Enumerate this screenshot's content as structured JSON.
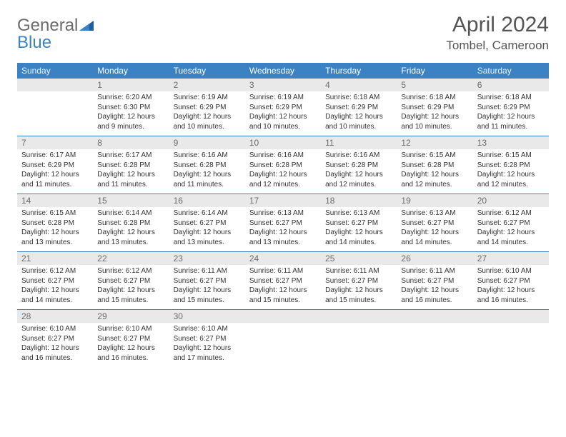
{
  "brand": {
    "word1": "General",
    "word2": "Blue"
  },
  "title": "April 2024",
  "location": "Tombel, Cameroon",
  "colors": {
    "header_bg": "#3a82c4",
    "header_text": "#ffffff",
    "daynum_bg": "#e9e9e9",
    "daynum_text": "#6b6b6b",
    "row_border": "#3a82c4",
    "logo_gray": "#6b6b6b",
    "logo_blue": "#3a82c4"
  },
  "dayHeaders": [
    "Sunday",
    "Monday",
    "Tuesday",
    "Wednesday",
    "Thursday",
    "Friday",
    "Saturday"
  ],
  "weeks": [
    [
      {
        "n": "",
        "lines": []
      },
      {
        "n": "1",
        "lines": [
          "Sunrise: 6:20 AM",
          "Sunset: 6:30 PM",
          "Daylight: 12 hours",
          "and 9 minutes."
        ]
      },
      {
        "n": "2",
        "lines": [
          "Sunrise: 6:19 AM",
          "Sunset: 6:29 PM",
          "Daylight: 12 hours",
          "and 10 minutes."
        ]
      },
      {
        "n": "3",
        "lines": [
          "Sunrise: 6:19 AM",
          "Sunset: 6:29 PM",
          "Daylight: 12 hours",
          "and 10 minutes."
        ]
      },
      {
        "n": "4",
        "lines": [
          "Sunrise: 6:18 AM",
          "Sunset: 6:29 PM",
          "Daylight: 12 hours",
          "and 10 minutes."
        ]
      },
      {
        "n": "5",
        "lines": [
          "Sunrise: 6:18 AM",
          "Sunset: 6:29 PM",
          "Daylight: 12 hours",
          "and 10 minutes."
        ]
      },
      {
        "n": "6",
        "lines": [
          "Sunrise: 6:18 AM",
          "Sunset: 6:29 PM",
          "Daylight: 12 hours",
          "and 11 minutes."
        ]
      }
    ],
    [
      {
        "n": "7",
        "lines": [
          "Sunrise: 6:17 AM",
          "Sunset: 6:29 PM",
          "Daylight: 12 hours",
          "and 11 minutes."
        ]
      },
      {
        "n": "8",
        "lines": [
          "Sunrise: 6:17 AM",
          "Sunset: 6:28 PM",
          "Daylight: 12 hours",
          "and 11 minutes."
        ]
      },
      {
        "n": "9",
        "lines": [
          "Sunrise: 6:16 AM",
          "Sunset: 6:28 PM",
          "Daylight: 12 hours",
          "and 11 minutes."
        ]
      },
      {
        "n": "10",
        "lines": [
          "Sunrise: 6:16 AM",
          "Sunset: 6:28 PM",
          "Daylight: 12 hours",
          "and 12 minutes."
        ]
      },
      {
        "n": "11",
        "lines": [
          "Sunrise: 6:16 AM",
          "Sunset: 6:28 PM",
          "Daylight: 12 hours",
          "and 12 minutes."
        ]
      },
      {
        "n": "12",
        "lines": [
          "Sunrise: 6:15 AM",
          "Sunset: 6:28 PM",
          "Daylight: 12 hours",
          "and 12 minutes."
        ]
      },
      {
        "n": "13",
        "lines": [
          "Sunrise: 6:15 AM",
          "Sunset: 6:28 PM",
          "Daylight: 12 hours",
          "and 12 minutes."
        ]
      }
    ],
    [
      {
        "n": "14",
        "lines": [
          "Sunrise: 6:15 AM",
          "Sunset: 6:28 PM",
          "Daylight: 12 hours",
          "and 13 minutes."
        ]
      },
      {
        "n": "15",
        "lines": [
          "Sunrise: 6:14 AM",
          "Sunset: 6:28 PM",
          "Daylight: 12 hours",
          "and 13 minutes."
        ]
      },
      {
        "n": "16",
        "lines": [
          "Sunrise: 6:14 AM",
          "Sunset: 6:27 PM",
          "Daylight: 12 hours",
          "and 13 minutes."
        ]
      },
      {
        "n": "17",
        "lines": [
          "Sunrise: 6:13 AM",
          "Sunset: 6:27 PM",
          "Daylight: 12 hours",
          "and 13 minutes."
        ]
      },
      {
        "n": "18",
        "lines": [
          "Sunrise: 6:13 AM",
          "Sunset: 6:27 PM",
          "Daylight: 12 hours",
          "and 14 minutes."
        ]
      },
      {
        "n": "19",
        "lines": [
          "Sunrise: 6:13 AM",
          "Sunset: 6:27 PM",
          "Daylight: 12 hours",
          "and 14 minutes."
        ]
      },
      {
        "n": "20",
        "lines": [
          "Sunrise: 6:12 AM",
          "Sunset: 6:27 PM",
          "Daylight: 12 hours",
          "and 14 minutes."
        ]
      }
    ],
    [
      {
        "n": "21",
        "lines": [
          "Sunrise: 6:12 AM",
          "Sunset: 6:27 PM",
          "Daylight: 12 hours",
          "and 14 minutes."
        ]
      },
      {
        "n": "22",
        "lines": [
          "Sunrise: 6:12 AM",
          "Sunset: 6:27 PM",
          "Daylight: 12 hours",
          "and 15 minutes."
        ]
      },
      {
        "n": "23",
        "lines": [
          "Sunrise: 6:11 AM",
          "Sunset: 6:27 PM",
          "Daylight: 12 hours",
          "and 15 minutes."
        ]
      },
      {
        "n": "24",
        "lines": [
          "Sunrise: 6:11 AM",
          "Sunset: 6:27 PM",
          "Daylight: 12 hours",
          "and 15 minutes."
        ]
      },
      {
        "n": "25",
        "lines": [
          "Sunrise: 6:11 AM",
          "Sunset: 6:27 PM",
          "Daylight: 12 hours",
          "and 15 minutes."
        ]
      },
      {
        "n": "26",
        "lines": [
          "Sunrise: 6:11 AM",
          "Sunset: 6:27 PM",
          "Daylight: 12 hours",
          "and 16 minutes."
        ]
      },
      {
        "n": "27",
        "lines": [
          "Sunrise: 6:10 AM",
          "Sunset: 6:27 PM",
          "Daylight: 12 hours",
          "and 16 minutes."
        ]
      }
    ],
    [
      {
        "n": "28",
        "lines": [
          "Sunrise: 6:10 AM",
          "Sunset: 6:27 PM",
          "Daylight: 12 hours",
          "and 16 minutes."
        ]
      },
      {
        "n": "29",
        "lines": [
          "Sunrise: 6:10 AM",
          "Sunset: 6:27 PM",
          "Daylight: 12 hours",
          "and 16 minutes."
        ]
      },
      {
        "n": "30",
        "lines": [
          "Sunrise: 6:10 AM",
          "Sunset: 6:27 PM",
          "Daylight: 12 hours",
          "and 17 minutes."
        ]
      },
      {
        "n": "",
        "lines": []
      },
      {
        "n": "",
        "lines": []
      },
      {
        "n": "",
        "lines": []
      },
      {
        "n": "",
        "lines": []
      }
    ]
  ]
}
